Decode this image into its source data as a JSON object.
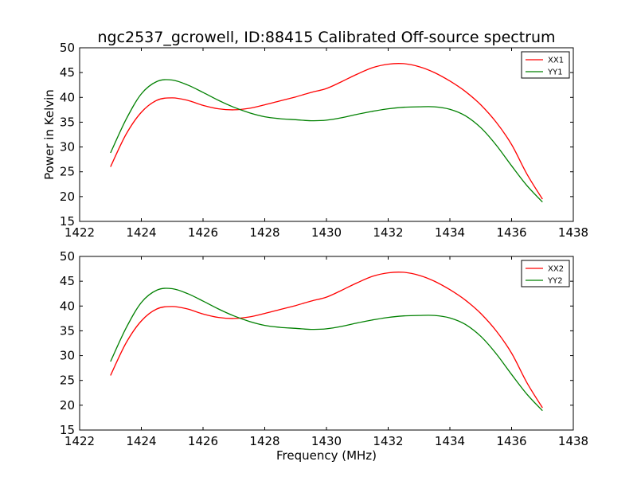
{
  "figure": {
    "title": "ngc2537_gcrowell, ID:88415 Calibrated Off-source spectrum",
    "xlabel": "Frequency (MHz)",
    "ylabel": "Power in Kelvin"
  },
  "chart_data": [
    {
      "type": "line",
      "title": "ngc2537_gcrowell, ID:88415 Calibrated Off-source spectrum",
      "xlabel": "",
      "ylabel": "Power in Kelvin",
      "xlim": [
        1422,
        1438
      ],
      "ylim": [
        15,
        50
      ],
      "xticks": [
        1422,
        1424,
        1426,
        1428,
        1430,
        1432,
        1434,
        1436,
        1438
      ],
      "yticks": [
        15,
        20,
        25,
        30,
        35,
        40,
        45,
        50
      ],
      "grid": false,
      "legend": "top-right",
      "x": [
        1423.0,
        1423.5,
        1424.0,
        1424.5,
        1425.0,
        1425.5,
        1426.0,
        1426.5,
        1427.0,
        1427.5,
        1428.0,
        1428.5,
        1429.0,
        1429.5,
        1430.0,
        1430.5,
        1431.0,
        1431.5,
        1432.0,
        1432.5,
        1433.0,
        1433.5,
        1434.0,
        1434.5,
        1435.0,
        1435.5,
        1436.0,
        1436.5,
        1437.0
      ],
      "series": [
        {
          "name": "XX1",
          "color": "#ff0000",
          "values": [
            26.0,
            32.5,
            37.0,
            39.4,
            39.9,
            39.4,
            38.4,
            37.7,
            37.5,
            37.8,
            38.5,
            39.3,
            40.1,
            41.0,
            41.8,
            43.2,
            44.7,
            46.0,
            46.7,
            46.8,
            46.2,
            45.0,
            43.3,
            41.2,
            38.5,
            35.0,
            30.5,
            24.5,
            19.5
          ]
        },
        {
          "name": "YY1",
          "color": "#008000",
          "values": [
            28.8,
            35.5,
            40.7,
            43.2,
            43.5,
            42.5,
            41.0,
            39.4,
            38.0,
            36.9,
            36.1,
            35.7,
            35.5,
            35.3,
            35.4,
            35.9,
            36.6,
            37.2,
            37.7,
            38.0,
            38.1,
            38.1,
            37.6,
            36.3,
            33.9,
            30.4,
            26.2,
            22.2,
            18.9
          ]
        }
      ]
    },
    {
      "type": "line",
      "title": "",
      "xlabel": "Frequency (MHz)",
      "ylabel": "",
      "xlim": [
        1422,
        1438
      ],
      "ylim": [
        15,
        50
      ],
      "xticks": [
        1422,
        1424,
        1426,
        1428,
        1430,
        1432,
        1434,
        1436,
        1438
      ],
      "yticks": [
        15,
        20,
        25,
        30,
        35,
        40,
        45,
        50
      ],
      "grid": false,
      "legend": "top-right",
      "x": [
        1423.0,
        1423.5,
        1424.0,
        1424.5,
        1425.0,
        1425.5,
        1426.0,
        1426.5,
        1427.0,
        1427.5,
        1428.0,
        1428.5,
        1429.0,
        1429.5,
        1430.0,
        1430.5,
        1431.0,
        1431.5,
        1432.0,
        1432.5,
        1433.0,
        1433.5,
        1434.0,
        1434.5,
        1435.0,
        1435.5,
        1436.0,
        1436.5,
        1437.0
      ],
      "series": [
        {
          "name": "XX2",
          "color": "#ff0000",
          "values": [
            26.0,
            32.5,
            37.0,
            39.4,
            39.9,
            39.4,
            38.4,
            37.7,
            37.5,
            37.8,
            38.5,
            39.3,
            40.1,
            41.0,
            41.8,
            43.2,
            44.7,
            46.0,
            46.7,
            46.8,
            46.2,
            45.0,
            43.3,
            41.2,
            38.5,
            35.0,
            30.5,
            24.5,
            19.5
          ]
        },
        {
          "name": "YY2",
          "color": "#008000",
          "values": [
            28.8,
            35.5,
            40.7,
            43.2,
            43.5,
            42.5,
            41.0,
            39.4,
            38.0,
            36.9,
            36.1,
            35.7,
            35.5,
            35.3,
            35.4,
            35.9,
            36.6,
            37.2,
            37.7,
            38.0,
            38.1,
            38.1,
            37.6,
            36.3,
            33.9,
            30.4,
            26.2,
            22.2,
            18.9
          ]
        }
      ]
    }
  ]
}
